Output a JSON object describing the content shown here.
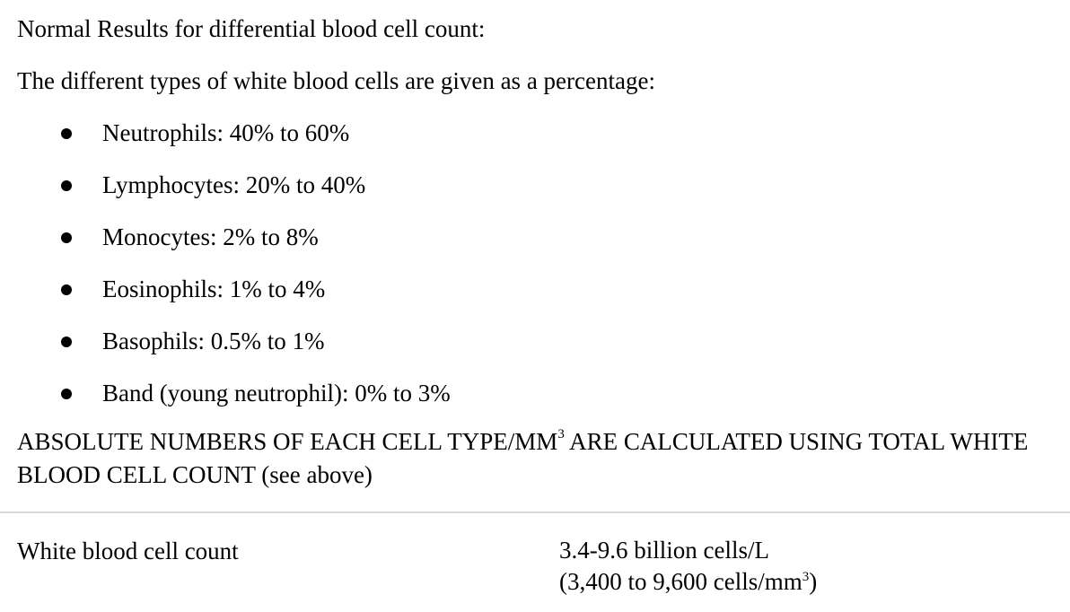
{
  "intro": "Normal Results for differential blood cell count:",
  "lead": "The different types of white blood cells are given as a percentage:",
  "ranges": [
    "Neutrophils: 40% to 60%",
    "Lymphocytes: 20% to 40%",
    "Monocytes: 2% to 8%",
    "Eosinophils: 1% to 4%",
    "Basophils: 0.5% to 1%",
    "Band (young neutrophil): 0% to 3%"
  ],
  "note": {
    "part1": "ABSOLUTE NUMBERS OF EACH CELL TYPE/MM",
    "sup": "3",
    "part2": " ARE CALCULATED USING TOTAL WHITE BLOOD CELL COUNT (see above)"
  },
  "table": {
    "label": "White blood cell count",
    "value_line1": "3.4-9.6 billion cells/L",
    "value_line2_prefix": "(3,400 to 9,600 cells/mm",
    "value_line2_sup": "3",
    "value_line2_suffix": ")"
  }
}
